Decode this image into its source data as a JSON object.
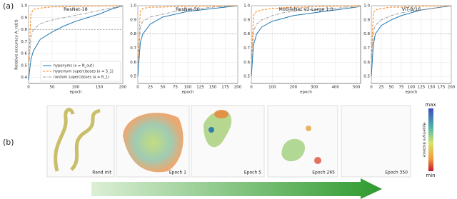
{
  "panel_a": {
    "label": "(a)"
  },
  "chart_data": [
    {
      "type": "line",
      "title": "ResNet-18",
      "xlabel": "epoch",
      "ylabel": "Relative accuracy A_rel(t)",
      "x": [
        0,
        5,
        10,
        25,
        50,
        75,
        100,
        125,
        150,
        175,
        200
      ],
      "xlim": [
        0,
        200
      ],
      "xticks": [
        0,
        50,
        100,
        150,
        200
      ],
      "ylim": [
        0.35,
        1.0
      ],
      "yticks": [
        0.4,
        0.5,
        0.6,
        0.7,
        0.8,
        0.9,
        {
          "value": 1,
          "label": "1.0"
        }
      ],
      "reference_line": 0.8,
      "grid": true,
      "legend": "lower right",
      "series": [
        {
          "name": "hyponyms (x = N_out)",
          "color": "#1f77b4",
          "style": "solid",
          "values": [
            0.38,
            0.55,
            0.62,
            0.72,
            0.78,
            0.83,
            0.87,
            0.9,
            0.93,
            0.97,
            1.0
          ]
        },
        {
          "name": "hypernym superclasses (x = S_1)",
          "color": "#ff7f0e",
          "style": "dashed",
          "values": [
            0.5,
            0.93,
            0.97,
            0.98,
            0.99,
            0.99,
            0.995,
            0.997,
            0.998,
            0.999,
            1.0
          ]
        },
        {
          "name": "random superclasses (x = R_1)",
          "color": "#9a9a9a",
          "style": "dashdot",
          "values": [
            0.45,
            0.74,
            0.8,
            0.85,
            0.88,
            0.9,
            0.92,
            0.94,
            0.96,
            0.98,
            1.0
          ]
        }
      ]
    },
    {
      "type": "line",
      "title": "ResNet-50",
      "xlabel": "epoch",
      "x": [
        0,
        5,
        10,
        25,
        50,
        75,
        100,
        125,
        150,
        175,
        200
      ],
      "xlim": [
        0,
        200
      ],
      "xticks": [
        0,
        25,
        50,
        75,
        100,
        125,
        150,
        175,
        200
      ],
      "ylim": [
        0.45,
        1.0
      ],
      "yticks": [
        0.5,
        0.6,
        0.7,
        0.8,
        0.9,
        {
          "value": 1,
          "label": "1.0"
        }
      ],
      "reference_line": 0.8,
      "grid": true,
      "series": [
        {
          "color": "#1f77b4",
          "style": "solid",
          "values": [
            0.5,
            0.74,
            0.8,
            0.87,
            0.92,
            0.94,
            0.96,
            0.97,
            0.98,
            0.99,
            1.0
          ]
        },
        {
          "color": "#ff7f0e",
          "style": "dashed",
          "values": [
            0.6,
            0.96,
            0.98,
            0.99,
            0.99,
            0.995,
            0.996,
            0.997,
            0.998,
            0.999,
            1.0
          ]
        },
        {
          "color": "#9a9a9a",
          "style": "dashdot",
          "values": [
            0.55,
            0.85,
            0.89,
            0.92,
            0.94,
            0.96,
            0.97,
            0.98,
            0.99,
            0.995,
            1.0
          ]
        }
      ]
    },
    {
      "type": "line",
      "title": "MobileNet V3-Large 1.0",
      "xlabel": "epoch",
      "x": [
        0,
        10,
        25,
        50,
        100,
        150,
        200,
        250,
        300,
        350,
        400,
        450,
        500,
        520
      ],
      "xlim": [
        0,
        520
      ],
      "xticks": [
        0,
        100,
        200,
        300,
        400,
        500
      ],
      "ylim": [
        0.45,
        1.0
      ],
      "yticks": [
        0.5,
        0.6,
        0.7,
        0.8,
        0.9,
        {
          "value": 1,
          "label": "1.0"
        }
      ],
      "reference_line": 0.8,
      "grid": true,
      "series": [
        {
          "color": "#1f77b4",
          "style": "solid",
          "values": [
            0.5,
            0.72,
            0.8,
            0.85,
            0.89,
            0.91,
            0.93,
            0.94,
            0.95,
            0.96,
            0.97,
            0.98,
            0.99,
            1.0
          ]
        },
        {
          "color": "#ff7f0e",
          "style": "dashed",
          "values": [
            0.6,
            0.93,
            0.96,
            0.97,
            0.98,
            0.985,
            0.99,
            0.99,
            0.995,
            0.995,
            0.997,
            0.998,
            0.999,
            1.0
          ]
        },
        {
          "color": "#9a9a9a",
          "style": "dashdot",
          "values": [
            0.55,
            0.82,
            0.87,
            0.9,
            0.93,
            0.95,
            0.96,
            0.97,
            0.97,
            0.98,
            0.98,
            0.99,
            0.99,
            1.0
          ]
        }
      ]
    },
    {
      "type": "line",
      "title": "ViT-B/16",
      "xlabel": "epoch",
      "x": [
        0,
        5,
        10,
        25,
        50,
        75,
        100,
        125,
        150,
        175,
        200
      ],
      "xlim": [
        0,
        200
      ],
      "xticks": [
        0,
        25,
        50,
        75,
        100,
        125,
        150,
        175,
        200
      ],
      "ylim": [
        0.45,
        1.0
      ],
      "yticks": [
        0.5,
        0.6,
        0.7,
        0.8,
        0.9,
        {
          "value": 1,
          "label": "1.0"
        }
      ],
      "reference_line": 0.8,
      "grid": true,
      "series": [
        {
          "color": "#1f77b4",
          "style": "solid",
          "values": [
            0.5,
            0.72,
            0.8,
            0.86,
            0.9,
            0.93,
            0.95,
            0.97,
            0.98,
            0.99,
            1.0
          ]
        },
        {
          "color": "#ff7f0e",
          "style": "dashed",
          "values": [
            0.6,
            0.95,
            0.97,
            0.98,
            0.99,
            0.99,
            0.995,
            0.997,
            0.998,
            0.999,
            1.0
          ]
        },
        {
          "color": "#9a9a9a",
          "style": "dashdot",
          "values": [
            0.55,
            0.82,
            0.86,
            0.9,
            0.93,
            0.95,
            0.96,
            0.97,
            0.98,
            0.99,
            1.0
          ]
        }
      ]
    }
  ],
  "panel_b": {
    "label": "(b)",
    "images": [
      {
        "label": "Rand init"
      },
      {
        "label": "Epoch 1"
      },
      {
        "label": "Epoch 5"
      },
      {
        "label": "Epoch 265"
      },
      {
        "label": "Epoch 350"
      }
    ],
    "colorbar": {
      "max": "max",
      "min": "min",
      "label": "Hypernym distance"
    }
  }
}
